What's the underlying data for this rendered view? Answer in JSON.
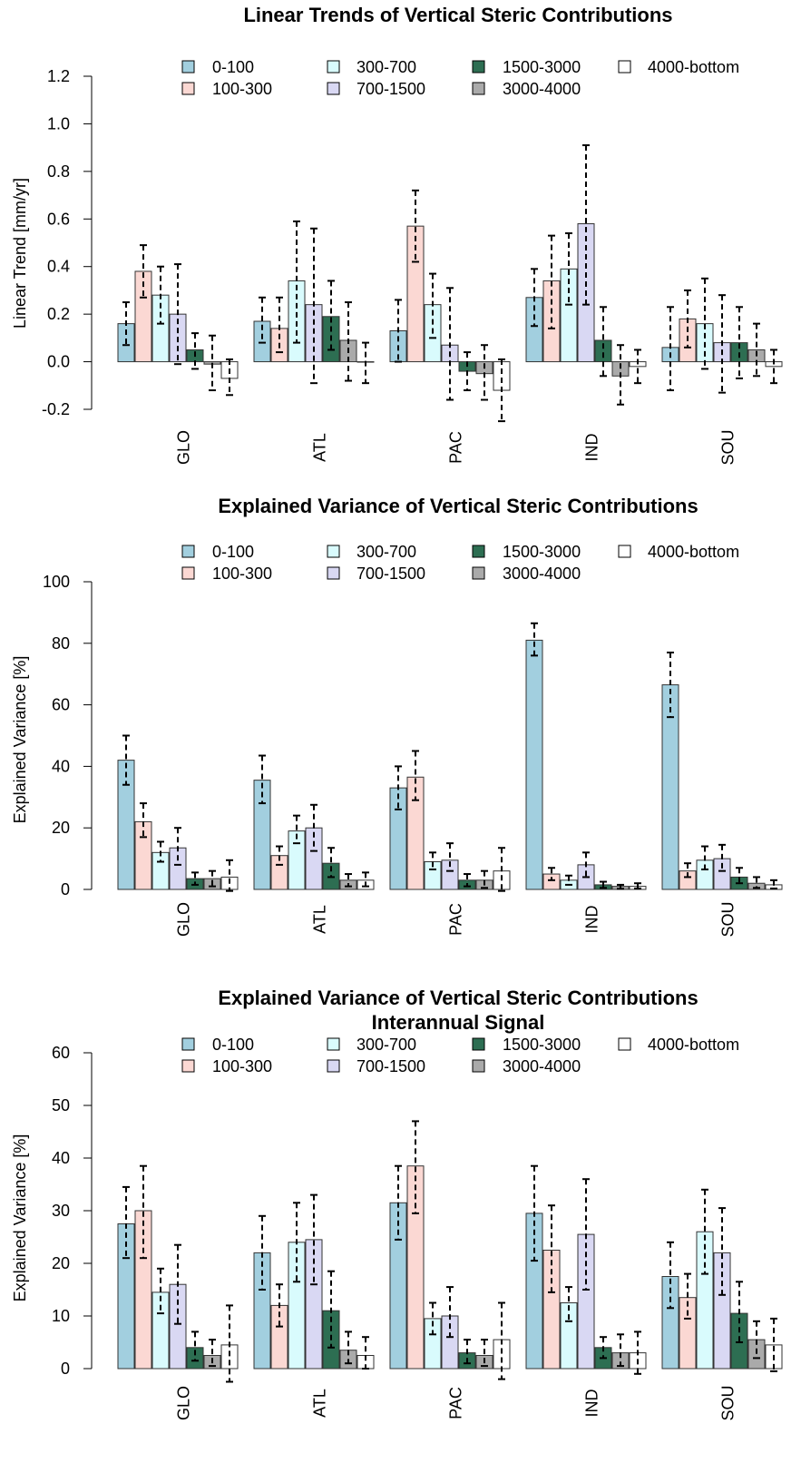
{
  "chart_data": [
    {
      "type": "bar",
      "title": "Linear Trends of Vertical Steric Contributions",
      "subtitle": "",
      "xlabel": "",
      "ylabel": "Linear Trend [mm/yr]",
      "ylim": [
        -0.2,
        1.2
      ],
      "yticks": [
        "-0.2",
        "0.0",
        "0.2",
        "0.4",
        "0.6",
        "0.8",
        "1.0",
        "1.2"
      ],
      "error_bars": true,
      "legend_position": "top",
      "categories": [
        "GLO",
        "ATL",
        "PAC",
        "IND",
        "SOU"
      ],
      "series": [
        {
          "name": "0-100",
          "color": "#a2cfdf",
          "values": [
            0.16,
            0.17,
            0.13,
            0.27,
            0.06
          ],
          "lower": [
            0.07,
            0.08,
            0.0,
            0.15,
            -0.12
          ],
          "upper": [
            0.25,
            0.27,
            0.26,
            0.39,
            0.23
          ]
        },
        {
          "name": "100-300",
          "color": "#fbd8d3",
          "values": [
            0.38,
            0.14,
            0.57,
            0.34,
            0.18
          ],
          "lower": [
            0.27,
            0.04,
            0.42,
            0.14,
            0.06
          ],
          "upper": [
            0.49,
            0.27,
            0.72,
            0.53,
            0.3
          ]
        },
        {
          "name": "300-700",
          "color": "#d9fbfd",
          "values": [
            0.28,
            0.34,
            0.24,
            0.39,
            0.16
          ],
          "lower": [
            0.16,
            0.08,
            0.1,
            0.24,
            -0.03
          ],
          "upper": [
            0.4,
            0.59,
            0.37,
            0.54,
            0.35
          ]
        },
        {
          "name": "700-1500",
          "color": "#d9d8f3",
          "values": [
            0.2,
            0.24,
            0.07,
            0.58,
            0.08
          ],
          "lower": [
            -0.01,
            -0.09,
            -0.16,
            0.24,
            -0.13
          ],
          "upper": [
            0.41,
            0.56,
            0.31,
            0.91,
            0.28
          ]
        },
        {
          "name": "1500-3000",
          "color": "#2d6e52",
          "values": [
            0.05,
            0.19,
            -0.04,
            0.09,
            0.08
          ],
          "lower": [
            -0.03,
            0.05,
            -0.12,
            -0.06,
            -0.07
          ],
          "upper": [
            0.12,
            0.34,
            0.04,
            0.23,
            0.23
          ]
        },
        {
          "name": "3000-4000",
          "color": "#aaaaaa",
          "values": [
            -0.01,
            0.09,
            -0.05,
            -0.06,
            0.05
          ],
          "lower": [
            -0.12,
            -0.08,
            -0.16,
            -0.18,
            -0.06
          ],
          "upper": [
            0.11,
            0.25,
            0.07,
            0.07,
            0.16
          ]
        },
        {
          "name": "4000-bottom",
          "color": "#ffffff",
          "values": [
            -0.07,
            0.0,
            -0.12,
            -0.02,
            -0.02
          ],
          "lower": [
            -0.14,
            -0.09,
            -0.25,
            -0.09,
            -0.09
          ],
          "upper": [
            0.01,
            0.08,
            0.01,
            0.05,
            0.05
          ]
        }
      ]
    },
    {
      "type": "bar",
      "title": "Explained Variance of Vertical Steric Contributions",
      "subtitle": "",
      "xlabel": "",
      "ylabel": "Explained Variance [%]",
      "ylim": [
        0,
        100
      ],
      "yticks": [
        "0",
        "20",
        "40",
        "60",
        "80",
        "100"
      ],
      "error_bars": true,
      "legend_position": "top",
      "categories": [
        "GLO",
        "ATL",
        "PAC",
        "IND",
        "SOU"
      ],
      "series": [
        {
          "name": "0-100",
          "color": "#a2cfdf",
          "values": [
            42,
            35.5,
            33,
            81,
            66.5
          ],
          "lower": [
            34,
            28,
            26,
            76,
            56
          ],
          "upper": [
            50,
            43.5,
            40,
            86.5,
            77
          ]
        },
        {
          "name": "100-300",
          "color": "#fbd8d3",
          "values": [
            22,
            11,
            36.5,
            5,
            6
          ],
          "lower": [
            17,
            8,
            29,
            3,
            4
          ],
          "upper": [
            28,
            14,
            45,
            7,
            8.5
          ]
        },
        {
          "name": "300-700",
          "color": "#d9fbfd",
          "values": [
            12,
            19,
            9,
            3,
            9.5
          ],
          "lower": [
            9,
            15,
            6.5,
            1.5,
            6.5
          ],
          "upper": [
            15.5,
            24,
            12,
            4.5,
            14
          ]
        },
        {
          "name": "700-1500",
          "color": "#d9d8f3",
          "values": [
            13.5,
            20,
            9.5,
            8,
            10
          ],
          "lower": [
            8,
            12.5,
            6,
            4,
            6
          ],
          "upper": [
            20,
            27.5,
            15,
            12,
            14.5
          ]
        },
        {
          "name": "1500-3000",
          "color": "#2d6e52",
          "values": [
            3.5,
            8.5,
            3,
            1.5,
            4
          ],
          "lower": [
            1.5,
            4,
            1,
            0.5,
            2
          ],
          "upper": [
            5.5,
            13.5,
            5,
            2.5,
            7
          ]
        },
        {
          "name": "3000-4000",
          "color": "#aaaaaa",
          "values": [
            3.5,
            3,
            3,
            1,
            2
          ],
          "lower": [
            1,
            1,
            0.5,
            0.2,
            0.5
          ],
          "upper": [
            6,
            5,
            6,
            1.5,
            4
          ]
        },
        {
          "name": "4000-bottom",
          "color": "#ffffff",
          "values": [
            4,
            3,
            6,
            1,
            1.5
          ],
          "lower": [
            -0.5,
            1,
            -0.5,
            0.3,
            0.3
          ],
          "upper": [
            9.5,
            5.5,
            13.5,
            2,
            3
          ]
        }
      ]
    },
    {
      "type": "bar",
      "title": "Explained Variance of Vertical Steric Contributions",
      "subtitle": "Interannual Signal",
      "xlabel": "",
      "ylabel": "Explained Variance [%]",
      "ylim": [
        0,
        60
      ],
      "yticks": [
        "0",
        "10",
        "20",
        "30",
        "40",
        "50",
        "60"
      ],
      "error_bars": true,
      "legend_position": "top",
      "categories": [
        "GLO",
        "ATL",
        "PAC",
        "IND",
        "SOU"
      ],
      "series": [
        {
          "name": "0-100",
          "color": "#a2cfdf",
          "values": [
            27.5,
            22,
            31.5,
            29.5,
            17.5
          ],
          "lower": [
            21,
            15,
            24.5,
            20.5,
            11.5
          ],
          "upper": [
            34.5,
            29,
            38.5,
            38.5,
            24
          ]
        },
        {
          "name": "100-300",
          "color": "#fbd8d3",
          "values": [
            30,
            12,
            38.5,
            22.5,
            13.5
          ],
          "lower": [
            21,
            8,
            29.5,
            14.5,
            9.5
          ],
          "upper": [
            38.5,
            16,
            47,
            31,
            18
          ]
        },
        {
          "name": "300-700",
          "color": "#d9fbfd",
          "values": [
            14.5,
            24,
            9.5,
            12.5,
            26
          ],
          "lower": [
            10.5,
            16.5,
            6.5,
            9,
            18
          ],
          "upper": [
            19,
            31.5,
            12.5,
            15.5,
            34
          ]
        },
        {
          "name": "700-1500",
          "color": "#d9d8f3",
          "values": [
            16,
            24.5,
            10,
            25.5,
            22
          ],
          "lower": [
            8.5,
            16,
            6,
            15,
            14
          ],
          "upper": [
            23.5,
            33,
            15.5,
            36,
            30.5
          ]
        },
        {
          "name": "1500-3000",
          "color": "#2d6e52",
          "values": [
            4,
            11,
            3,
            4,
            10.5
          ],
          "lower": [
            1.5,
            4,
            1,
            2,
            5
          ],
          "upper": [
            7,
            18.5,
            5.5,
            6,
            16.5
          ]
        },
        {
          "name": "3000-4000",
          "color": "#aaaaaa",
          "values": [
            2.5,
            3.5,
            2.5,
            3,
            5.5
          ],
          "lower": [
            0.5,
            1,
            0.5,
            0.5,
            2
          ],
          "upper": [
            5.5,
            7,
            5.5,
            6.5,
            9
          ]
        },
        {
          "name": "4000-bottom",
          "color": "#ffffff",
          "values": [
            4.5,
            2.5,
            5.5,
            3,
            4.5
          ],
          "lower": [
            -2.5,
            0,
            -2,
            -1,
            -0.5
          ],
          "upper": [
            12,
            6,
            12.5,
            7,
            9.5
          ]
        }
      ]
    }
  ]
}
